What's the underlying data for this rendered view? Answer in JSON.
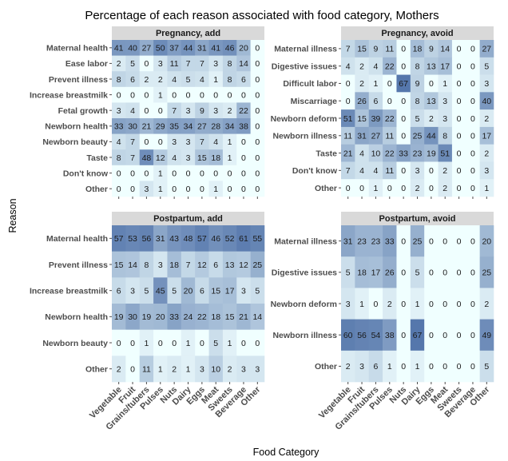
{
  "chart_data": {
    "type": "heatmap",
    "title": "Percentage of each reason associated with food category, Mothers",
    "xlabel": "Food Category",
    "ylabel": "Reason",
    "categories": [
      "Vegetable",
      "Fruit",
      "Grains/tubers",
      "Pulses",
      "Nuts",
      "Dairy",
      "Eggs",
      "Meat",
      "Sweets",
      "Beverage",
      "Other"
    ],
    "color_low": "#f0ffff",
    "color_high": "#2f5597",
    "value_range": [
      0,
      100
    ],
    "grid": false,
    "panels": [
      {
        "title": "Pregnancy, add",
        "reasons": [
          "Maternal health",
          "Ease labor",
          "Prevent illness",
          "Increase breastmilk",
          "Fetal growth",
          "Newborn health",
          "Newborn beauty",
          "Taste",
          "Don't know",
          "Other"
        ],
        "values": [
          [
            41,
            40,
            27,
            50,
            37,
            44,
            31,
            41,
            46,
            20,
            0
          ],
          [
            2,
            5,
            0,
            3,
            11,
            7,
            7,
            3,
            8,
            14,
            0
          ],
          [
            8,
            6,
            2,
            2,
            4,
            5,
            4,
            1,
            8,
            6,
            0
          ],
          [
            0,
            0,
            0,
            1,
            0,
            0,
            0,
            0,
            0,
            0,
            0
          ],
          [
            3,
            4,
            0,
            0,
            7,
            3,
            9,
            3,
            2,
            22,
            0
          ],
          [
            33,
            30,
            21,
            29,
            35,
            34,
            27,
            28,
            34,
            38,
            0
          ],
          [
            4,
            7,
            0,
            0,
            3,
            3,
            7,
            4,
            1,
            0,
            0
          ],
          [
            8,
            7,
            48,
            12,
            4,
            3,
            15,
            18,
            1,
            0,
            0
          ],
          [
            0,
            0,
            0,
            1,
            0,
            0,
            0,
            0,
            0,
            0,
            0
          ],
          [
            0,
            0,
            3,
            1,
            0,
            0,
            0,
            1,
            0,
            0,
            0
          ]
        ]
      },
      {
        "title": "Pregnancy, avoid",
        "reasons": [
          "Maternal illness",
          "Digestive issues",
          "Difficult labor",
          "Miscarriage",
          "Newborn deform",
          "Newborn illness",
          "Taste",
          "Don't know",
          "Other"
        ],
        "values": [
          [
            7,
            15,
            9,
            11,
            0,
            18,
            9,
            14,
            0,
            0,
            27
          ],
          [
            4,
            2,
            4,
            22,
            0,
            8,
            13,
            17,
            0,
            0,
            5
          ],
          [
            0,
            2,
            1,
            0,
            67,
            9,
            0,
            1,
            0,
            0,
            3
          ],
          [
            0,
            26,
            6,
            0,
            0,
            8,
            13,
            3,
            0,
            0,
            40
          ],
          [
            51,
            15,
            39,
            22,
            0,
            5,
            2,
            3,
            0,
            0,
            2
          ],
          [
            11,
            31,
            27,
            11,
            0,
            25,
            44,
            8,
            0,
            0,
            17
          ],
          [
            21,
            4,
            10,
            22,
            33,
            23,
            19,
            51,
            0,
            0,
            2
          ],
          [
            7,
            4,
            4,
            11,
            0,
            3,
            0,
            2,
            0,
            0,
            3
          ],
          [
            0,
            0,
            1,
            0,
            0,
            2,
            0,
            2,
            0,
            0,
            1
          ]
        ]
      },
      {
        "title": "Postpartum, add",
        "reasons": [
          "Maternal health",
          "Prevent illness",
          "Increase breastmilk",
          "Newborn health",
          "Newborn beauty",
          "Other"
        ],
        "values": [
          [
            57,
            53,
            56,
            31,
            43,
            48,
            57,
            46,
            52,
            61,
            55
          ],
          [
            15,
            14,
            8,
            3,
            18,
            7,
            12,
            6,
            13,
            12,
            25
          ],
          [
            6,
            3,
            5,
            45,
            5,
            20,
            6,
            15,
            17,
            3,
            5
          ],
          [
            19,
            30,
            19,
            20,
            33,
            24,
            22,
            18,
            15,
            21,
            14
          ],
          [
            0,
            0,
            1,
            0,
            0,
            1,
            0,
            5,
            1,
            0,
            0
          ],
          [
            2,
            0,
            11,
            1,
            2,
            1,
            3,
            10,
            2,
            3,
            3
          ]
        ]
      },
      {
        "title": "Postpartum, avoid",
        "reasons": [
          "Maternal illness",
          "Digestive issues",
          "Newborn deform",
          "Newborn illness",
          "Other"
        ],
        "values": [
          [
            31,
            23,
            23,
            33,
            0,
            25,
            0,
            0,
            0,
            0,
            20
          ],
          [
            5,
            18,
            17,
            26,
            0,
            5,
            0,
            0,
            0,
            0,
            25
          ],
          [
            3,
            1,
            0,
            2,
            0,
            1,
            0,
            0,
            0,
            0,
            2
          ],
          [
            60,
            56,
            54,
            38,
            0,
            67,
            0,
            0,
            0,
            0,
            49
          ],
          [
            2,
            3,
            6,
            1,
            0,
            1,
            0,
            0,
            0,
            0,
            5
          ]
        ]
      }
    ]
  }
}
